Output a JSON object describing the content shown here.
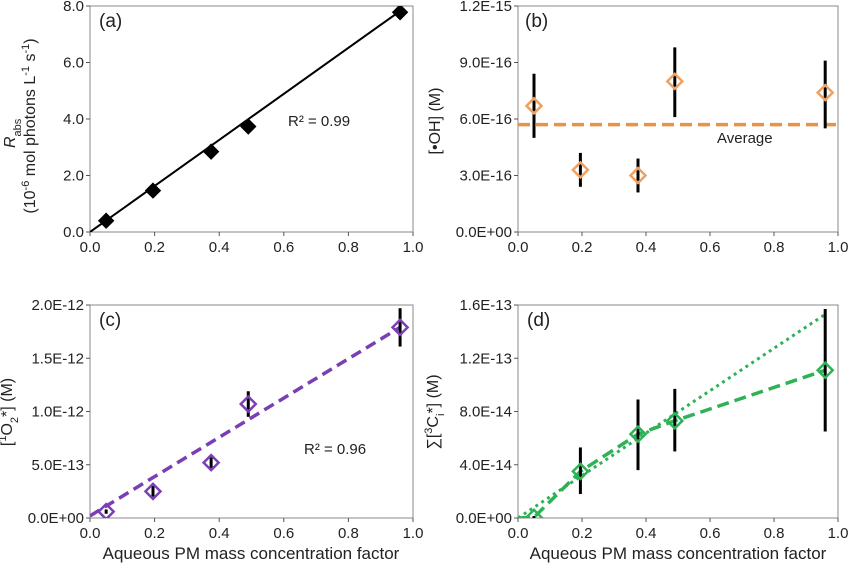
{
  "chart_data": [
    {
      "panel_label": "(a)",
      "type": "scatter",
      "ylabel_main": "R",
      "ylabel_sub": "abs",
      "ylabel_line2": "(10",
      "ylabel_line2_sup": "-6",
      "ylabel_line2_rest": " mol photons L",
      "ylabel_line2_sup2": "-1",
      "ylabel_line2_rest2": " s",
      "ylabel_line2_sup3": "-1",
      "ylabel_line2_end": ")",
      "xlabel": "",
      "xlim": [
        0,
        1.0
      ],
      "ylim": [
        0,
        9.0
      ],
      "xticks": [
        "0.0",
        "0.2",
        "0.4",
        "0.6",
        "0.8",
        "1.0"
      ],
      "yticks": [
        "0.0",
        "2.0",
        "4.0",
        "6.0",
        "8.0"
      ],
      "x": [
        0.05,
        0.195,
        0.375,
        0.49,
        0.96
      ],
      "y": [
        0.45,
        1.65,
        3.2,
        4.2,
        8.75
      ],
      "trendline": {
        "x": [
          0.0,
          0.96
        ],
        "y": [
          0.0,
          8.8
        ],
        "style": "solid"
      },
      "annotation": "R² = 0.99",
      "color": "#000000",
      "marker": "diamond-filled"
    },
    {
      "panel_label": "(b)",
      "type": "scatter",
      "ylabel_pre": "[",
      "ylabel_dot": "•",
      "ylabel_post": "OH] (M)",
      "xlim": [
        0,
        1.0
      ],
      "ylim": [
        0,
        1.2e-15
      ],
      "xticks": [
        "0.0",
        "0.2",
        "0.4",
        "0.6",
        "0.8",
        "1.0"
      ],
      "yticks": [
        "0.0E+00",
        "3.0E-16",
        "6.0E-16",
        "9.0E-16",
        "1.2E-15"
      ],
      "x": [
        0.05,
        0.195,
        0.375,
        0.49,
        0.96
      ],
      "y": [
        6.7e-16,
        3.3e-16,
        3e-16,
        8e-16,
        7.4e-16
      ],
      "err_low": [
        5e-16,
        2.4e-16,
        2.1e-16,
        6.1e-16,
        5.5e-16
      ],
      "err_high": [
        8.4e-16,
        4.2e-16,
        3.9e-16,
        9.8e-16,
        9.1e-16
      ],
      "average": 5.7e-16,
      "average_label": "Average",
      "color": "#F0A060",
      "avg_color": "#E8924A",
      "marker": "diamond-open"
    },
    {
      "panel_label": "(c)",
      "type": "scatter",
      "ylabel_pre": "[",
      "ylabel_sup": "1",
      "ylabel_mid": "O",
      "ylabel_sub": "2",
      "ylabel_post": "*] (M)",
      "xlabel": "Aqueous PM mass concentration factor",
      "xlim": [
        0,
        1.0
      ],
      "ylim": [
        0,
        2e-12
      ],
      "xticks": [
        "0.0",
        "0.2",
        "0.4",
        "0.6",
        "0.8",
        "1.0"
      ],
      "yticks": [
        "0.0E+00",
        "5.0E-13",
        "1.0E-12",
        "1.5E-12",
        "2.0E-12"
      ],
      "x": [
        0.05,
        0.195,
        0.375,
        0.49,
        0.96
      ],
      "y": [
        6e-14,
        2.5e-13,
        5.2e-13,
        1.07e-12,
        1.79e-12
      ],
      "err_low": [
        4e-14,
        2e-13,
        4.7e-13,
        9.5e-13,
        1.61e-12
      ],
      "err_high": [
        8e-14,
        3e-13,
        5.7e-13,
        1.19e-12,
        1.97e-12
      ],
      "trendline": {
        "x": [
          0.0,
          0.96
        ],
        "y": [
          2e-14,
          1.79e-12
        ],
        "style": "dashed"
      },
      "annotation": "R² = 0.96",
      "color": "#7B3FB5",
      "marker": "diamond-open"
    },
    {
      "panel_label": "(d)",
      "type": "scatter",
      "ylabel_pre": "∑[",
      "ylabel_sup": "3",
      "ylabel_mid": "C",
      "ylabel_sub": "i",
      "ylabel_post": "*] (M)",
      "xlabel": "Aqueous PM mass concentration factor",
      "xlim": [
        0,
        1.0
      ],
      "ylim": [
        0,
        1.6e-13
      ],
      "xticks": [
        "0.0",
        "0.2",
        "0.4",
        "0.6",
        "0.8",
        "1.0"
      ],
      "yticks": [
        "0.0E+00",
        "4.0E-14",
        "8.0E-14",
        "1.2E-13",
        "1.6E-13"
      ],
      "x": [
        0.05,
        0.195,
        0.375,
        0.49,
        0.96
      ],
      "y": [
        5e-16,
        3.5e-14,
        6.3e-14,
        7.3e-14,
        1.11e-13
      ],
      "err_low": [
        0,
        1.8e-14,
        3.6e-14,
        5e-14,
        6.5e-14
      ],
      "err_high": [
        1.5e-15,
        5.3e-14,
        8.9e-14,
        9.7e-14,
        1.57e-13
      ],
      "series_lines": [
        {
          "style": "dashed",
          "x": [
            0.0,
            0.05,
            0.195,
            0.375,
            0.49,
            0.96
          ],
          "y": [
            0.0,
            5e-16,
            3.5e-14,
            6.3e-14,
            7.3e-14,
            1.11e-13
          ]
        },
        {
          "style": "dotted",
          "x": [
            0.0,
            0.96
          ],
          "y": [
            0.0,
            1.53e-13
          ]
        }
      ],
      "color": "#2DB356",
      "marker": "diamond-open"
    }
  ]
}
